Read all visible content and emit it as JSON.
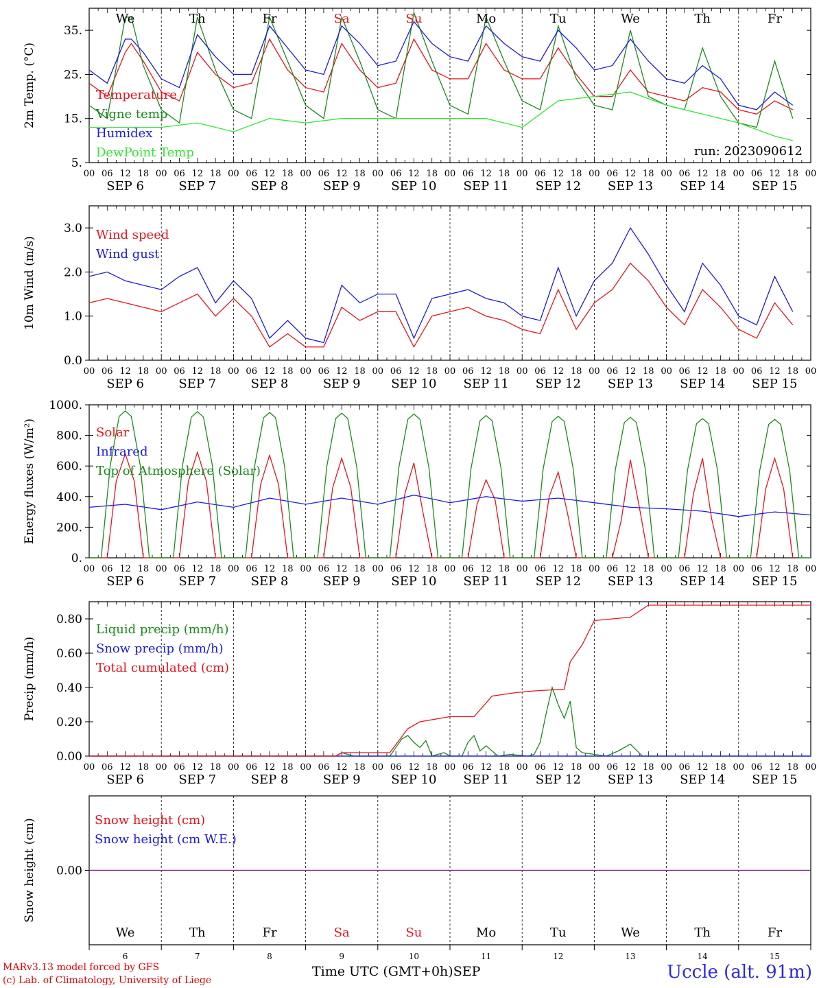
{
  "colors": {
    "red": "#e8141c",
    "green": "#1b8a1b",
    "blue": "#1a1ae6",
    "lightgreen": "#32e632",
    "purple": "#7a2a90",
    "black": "#000000"
  },
  "days": [
    "We",
    "Th",
    "Fr",
    "Sa",
    "Su",
    "Mo",
    "Tu",
    "We",
    "Th",
    "Fr"
  ],
  "weekend_days": [
    "Sa",
    "Su"
  ],
  "dates": [
    "SEP  6",
    "SEP  7",
    "SEP  8",
    "SEP  9",
    "SEP 10",
    "SEP 11",
    "SEP 12",
    "SEP 13",
    "SEP 14",
    "SEP 15"
  ],
  "day_numbers": [
    "6",
    "7",
    "8",
    "9",
    "10",
    "11",
    "12",
    "13",
    "14",
    "15"
  ],
  "hour_labels": [
    "00",
    "06",
    "12",
    "18"
  ],
  "run_label": "run: 2023090612",
  "footer": {
    "line1": "MARv3.13 model forced by GFS",
    "line2": "(c) Lab. of Climatology, University of Liege",
    "xtitle": "Time UTC (GMT+0h)",
    "month": "SEP",
    "station": "Uccle (alt. 91m)"
  },
  "chart_data": [
    {
      "type": "line",
      "id": "temp",
      "ylabel": "2m Temp. (°C)",
      "ylim": [
        5,
        40
      ],
      "yticks": [
        5,
        15,
        25,
        35
      ],
      "ytick_labels": [
        "5.",
        "15.",
        "25.",
        "35."
      ],
      "x_unit": "hours since SEP 6 00 UTC",
      "series": [
        {
          "name": "Temperature",
          "color": "red",
          "x": [
            0,
            6,
            12,
            14,
            18,
            24,
            30,
            36,
            42,
            48,
            54,
            60,
            66,
            72,
            78,
            84,
            90,
            96,
            102,
            108,
            114,
            120,
            126,
            132,
            138,
            144,
            150,
            156,
            162,
            168,
            174,
            180,
            186,
            192,
            198,
            204,
            210,
            216,
            222,
            228,
            234
          ],
          "y": [
            23,
            20,
            30,
            32,
            28,
            21,
            19,
            30,
            25,
            22,
            23,
            33,
            26,
            22,
            21,
            32,
            26,
            22,
            23,
            33,
            26,
            24,
            24,
            32,
            26,
            24,
            24,
            31,
            25,
            20,
            20,
            26,
            21,
            20,
            19,
            22,
            21,
            17,
            16,
            19,
            17
          ]
        },
        {
          "name": "Vigne temp",
          "color": "green",
          "x": [
            0,
            6,
            12,
            14,
            18,
            24,
            30,
            36,
            42,
            48,
            54,
            60,
            66,
            72,
            78,
            84,
            90,
            96,
            102,
            108,
            114,
            120,
            126,
            132,
            138,
            144,
            150,
            156,
            162,
            168,
            174,
            180,
            186,
            192,
            198,
            204,
            210,
            216,
            222,
            228,
            234
          ],
          "y": [
            18,
            15,
            38,
            38,
            27,
            17,
            14,
            38,
            26,
            17,
            15,
            38,
            28,
            18,
            15,
            38,
            28,
            17,
            15,
            39,
            28,
            18,
            16,
            38,
            28,
            19,
            17,
            36,
            24,
            18,
            17,
            35,
            20,
            18,
            17,
            31,
            20,
            14,
            13,
            28,
            15
          ]
        },
        {
          "name": "Humidex",
          "color": "blue",
          "x": [
            0,
            6,
            12,
            14,
            18,
            24,
            30,
            36,
            42,
            48,
            54,
            60,
            66,
            72,
            78,
            84,
            90,
            96,
            102,
            108,
            114,
            120,
            126,
            132,
            138,
            144,
            150,
            156,
            162,
            168,
            174,
            180,
            186,
            192,
            198,
            204,
            210,
            216,
            222,
            228,
            234
          ],
          "y": [
            26,
            23,
            33,
            33,
            30,
            24,
            22,
            34,
            29,
            25,
            25,
            36,
            31,
            26,
            25,
            36,
            32,
            27,
            28,
            37,
            32,
            29,
            28,
            36,
            32,
            29,
            28,
            35,
            31,
            26,
            27,
            33,
            28,
            24,
            23,
            27,
            24,
            18,
            17,
            21,
            18
          ]
        },
        {
          "name": "DewPoint Temp",
          "color": "lightgreen",
          "x": [
            0,
            12,
            24,
            36,
            48,
            60,
            72,
            84,
            96,
            108,
            120,
            132,
            144,
            156,
            168,
            180,
            192,
            204,
            216,
            228,
            234
          ],
          "y": [
            13,
            13,
            13,
            14,
            12,
            15,
            14,
            15,
            15,
            15,
            15,
            15,
            13,
            19,
            20,
            21,
            18,
            16,
            14,
            11,
            10
          ]
        }
      ]
    },
    {
      "type": "line",
      "id": "wind",
      "ylabel": "10m Wind (m/s)",
      "ylim": [
        0,
        3.5
      ],
      "yticks": [
        0,
        1,
        2,
        3
      ],
      "ytick_labels": [
        "0.0",
        "1.0",
        "2.0",
        "3.0"
      ],
      "x_unit": "hours since SEP 6 00 UTC",
      "series": [
        {
          "name": "Wind speed",
          "color": "red",
          "x": [
            0,
            6,
            12,
            18,
            24,
            30,
            36,
            42,
            48,
            54,
            60,
            66,
            72,
            78,
            84,
            90,
            96,
            102,
            108,
            114,
            120,
            126,
            132,
            138,
            144,
            150,
            156,
            162,
            168,
            174,
            180,
            186,
            192,
            198,
            204,
            210,
            216,
            222,
            228,
            234
          ],
          "y": [
            1.3,
            1.4,
            1.3,
            1.2,
            1.1,
            1.3,
            1.5,
            1.0,
            1.4,
            1.0,
            0.3,
            0.6,
            0.3,
            0.3,
            1.2,
            0.9,
            1.1,
            1.1,
            0.3,
            1.0,
            1.1,
            1.2,
            1.0,
            0.9,
            0.7,
            0.6,
            1.6,
            0.7,
            1.3,
            1.6,
            2.2,
            1.8,
            1.2,
            0.8,
            1.6,
            1.2,
            0.7,
            0.5,
            1.3,
            0.8
          ]
        },
        {
          "name": "Wind gust",
          "color": "blue",
          "x": [
            0,
            6,
            12,
            18,
            24,
            30,
            36,
            42,
            48,
            54,
            60,
            66,
            72,
            78,
            84,
            90,
            96,
            102,
            108,
            114,
            120,
            126,
            132,
            138,
            144,
            150,
            156,
            162,
            168,
            174,
            180,
            186,
            192,
            198,
            204,
            210,
            216,
            222,
            228,
            234
          ],
          "y": [
            1.9,
            2.0,
            1.8,
            1.7,
            1.6,
            1.9,
            2.1,
            1.3,
            1.8,
            1.4,
            0.5,
            0.9,
            0.5,
            0.4,
            1.7,
            1.3,
            1.5,
            1.5,
            0.5,
            1.4,
            1.5,
            1.6,
            1.4,
            1.3,
            1.0,
            0.9,
            2.1,
            1.0,
            1.8,
            2.2,
            3.0,
            2.4,
            1.7,
            1.1,
            2.2,
            1.7,
            1.0,
            0.8,
            1.9,
            1.1
          ]
        }
      ]
    },
    {
      "type": "line",
      "id": "energy",
      "ylabel": "Energy fluxes (W/m²)",
      "ylim": [
        0,
        1000
      ],
      "yticks": [
        0,
        200,
        400,
        600,
        800,
        1000
      ],
      "ytick_labels": [
        "0.",
        "200.",
        "400.",
        "600.",
        "800.",
        "1000."
      ],
      "x_unit": "hours since SEP 6 00 UTC",
      "series": [
        {
          "name": "Solar",
          "color": "red",
          "x": [
            0,
            6,
            9,
            12,
            15,
            18,
            30,
            33,
            36,
            39,
            42,
            54,
            57,
            60,
            63,
            66,
            78,
            81,
            84,
            87,
            90,
            102,
            105,
            108,
            111,
            114,
            126,
            129,
            132,
            135,
            138,
            150,
            153,
            156,
            159,
            162,
            174,
            177,
            180,
            183,
            186,
            198,
            201,
            204,
            207,
            210,
            222,
            225,
            228,
            231,
            234
          ],
          "y": [
            0,
            0,
            500,
            680,
            500,
            0,
            0,
            500,
            690,
            500,
            0,
            0,
            480,
            670,
            480,
            0,
            0,
            460,
            650,
            460,
            0,
            0,
            420,
            620,
            300,
            0,
            0,
            350,
            510,
            380,
            0,
            0,
            400,
            560,
            300,
            0,
            0,
            250,
            640,
            330,
            0,
            0,
            420,
            650,
            260,
            0,
            0,
            450,
            650,
            450,
            0
          ]
        },
        {
          "name": "Infrared",
          "color": "blue",
          "x": [
            0,
            12,
            24,
            36,
            48,
            60,
            72,
            84,
            96,
            108,
            120,
            132,
            144,
            156,
            168,
            180,
            192,
            204,
            216,
            228,
            240
          ],
          "y": [
            330,
            350,
            315,
            365,
            330,
            390,
            350,
            390,
            350,
            410,
            360,
            400,
            370,
            390,
            360,
            330,
            320,
            305,
            270,
            300,
            280
          ]
        },
        {
          "name": "Top of Atmosphere (Solar)",
          "color": "green",
          "x": [
            0,
            4,
            7,
            10,
            12,
            14,
            17,
            20,
            24
          ],
          "y": [
            0,
            0,
            600,
            920,
            955,
            920,
            600,
            0,
            0
          ],
          "repeat_days": 10,
          "peaks": [
            960,
            955,
            950,
            945,
            940,
            930,
            925,
            918,
            910,
            905
          ]
        }
      ]
    },
    {
      "type": "line",
      "id": "precip",
      "ylabel": "Precip (mm/h)",
      "ylim": [
        0,
        0.9
      ],
      "yticks": [
        0,
        0.2,
        0.4,
        0.6,
        0.8
      ],
      "ytick_labels": [
        "0.00",
        "0.20",
        "0.40",
        "0.60",
        "0.80"
      ],
      "x_unit": "hours since SEP 6 00 UTC",
      "series": [
        {
          "name": "Liquid precip (mm/h)",
          "color": "green",
          "x": [
            0,
            82,
            84,
            86,
            88,
            100,
            102,
            104,
            106,
            108,
            110,
            112,
            114,
            118,
            120,
            124,
            126,
            128,
            130,
            132,
            136,
            140,
            146,
            148,
            150,
            152,
            154,
            156,
            158,
            160,
            162,
            164,
            172,
            176,
            180,
            184,
            240
          ],
          "y": [
            0,
            0,
            0.02,
            0.01,
            0,
            0,
            0.05,
            0.1,
            0.12,
            0.08,
            0.05,
            0.09,
            0,
            0.02,
            0,
            0,
            0.08,
            0.12,
            0.03,
            0.06,
            0,
            0.01,
            0,
            0.01,
            0.08,
            0.25,
            0.4,
            0.3,
            0.22,
            0.32,
            0.05,
            0.02,
            0,
            0.03,
            0.07,
            0,
            0
          ]
        },
        {
          "name": "Snow precip (mm/h)",
          "color": "blue",
          "x": [
            0,
            240
          ],
          "y": [
            0,
            0
          ]
        },
        {
          "name": "Total cumulated (cm)",
          "color": "red",
          "x": [
            0,
            82,
            84,
            100,
            106,
            110,
            120,
            128,
            134,
            142,
            148,
            158,
            160,
            164,
            168,
            174,
            180,
            186,
            240
          ],
          "y": [
            0,
            0,
            0.02,
            0.02,
            0.16,
            0.2,
            0.23,
            0.23,
            0.35,
            0.37,
            0.38,
            0.39,
            0.55,
            0.65,
            0.79,
            0.8,
            0.81,
            0.88,
            0.88
          ]
        }
      ]
    },
    {
      "type": "line",
      "id": "snow",
      "ylabel": "Snow height (cm)",
      "ylim": [
        -1,
        1
      ],
      "yticks": [
        0
      ],
      "ytick_labels": [
        "0.00"
      ],
      "x_unit": "hours since SEP 6 00 UTC",
      "series": [
        {
          "name": "Snow height (cm)",
          "color": "red",
          "x": [
            0,
            240
          ],
          "y": [
            0,
            0
          ]
        },
        {
          "name": "Snow height (cm W.E.)",
          "color": "blue",
          "x": [
            0,
            240
          ],
          "y": [
            0,
            0
          ]
        }
      ]
    }
  ]
}
